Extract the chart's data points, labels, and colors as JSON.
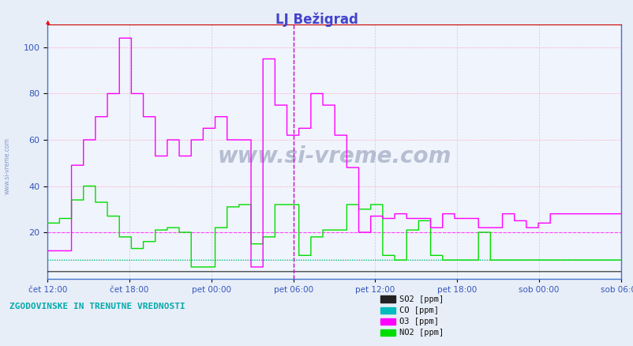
{
  "title": "LJ Bežigrad",
  "title_color": "#4444cc",
  "fig_bg": "#e8eef8",
  "plot_bg": "#f0f4fc",
  "o3_color": "#ff00ff",
  "no2_color": "#00dd00",
  "so2_color": "#222222",
  "co_color": "#00bbbb",
  "hline_pink_y": 20,
  "hline_pink_color": "#ff44ff",
  "hline_green_y": 8,
  "hline_green_color": "#00cc00",
  "vline_color": "#cc00cc",
  "vline_x": 3,
  "ylim": [
    0,
    110
  ],
  "xlim": [
    0,
    7
  ],
  "yticks": [
    20,
    40,
    60,
    80,
    100
  ],
  "xtick_labels": [
    "čet 12:00",
    "čet 18:00",
    "pet 00:00",
    "pet 06:00",
    "pet 12:00",
    "pet 18:00",
    "sob 00:00",
    "sob 06:00"
  ],
  "bottom_text": "ZGODOVINSKE IN TRENUTNE VREDNOSTI",
  "bottom_text_color": "#00aaaa",
  "watermark": "www.si-vreme.com",
  "legend_colors": [
    "#222222",
    "#00bbbb",
    "#ff00ff",
    "#00dd00"
  ],
  "legend_labels": [
    "SO2 [ppm]",
    "CO [ppm]",
    "O3 [ppm]",
    "NO2 [ppm]"
  ],
  "n": 576,
  "o3_data": [
    12,
    12,
    12,
    12,
    12,
    12,
    12,
    12,
    12,
    12,
    12,
    12,
    12,
    12,
    12,
    12,
    12,
    12,
    12,
    12,
    12,
    12,
    12,
    12,
    49,
    49,
    49,
    49,
    49,
    49,
    49,
    49,
    49,
    49,
    49,
    49,
    60,
    60,
    60,
    60,
    60,
    60,
    60,
    60,
    60,
    60,
    60,
    60,
    70,
    70,
    70,
    70,
    70,
    70,
    70,
    70,
    70,
    70,
    70,
    70,
    80,
    80,
    80,
    80,
    80,
    80,
    80,
    80,
    80,
    80,
    80,
    80,
    104,
    104,
    104,
    104,
    104,
    104,
    104,
    104,
    104,
    104,
    104,
    104,
    80,
    80,
    80,
    80,
    80,
    80,
    80,
    80,
    80,
    80,
    80,
    80,
    70,
    70,
    70,
    70,
    70,
    70,
    70,
    70,
    70,
    70,
    70,
    70,
    53,
    53,
    53,
    53,
    53,
    53,
    53,
    53,
    53,
    53,
    53,
    53,
    60,
    60,
    60,
    60,
    60,
    60,
    60,
    60,
    60,
    60,
    60,
    60,
    53,
    53,
    53,
    53,
    53,
    53,
    53,
    53,
    53,
    53,
    53,
    53,
    60,
    60,
    60,
    60,
    60,
    60,
    60,
    60,
    60,
    60,
    60,
    60,
    65,
    65,
    65,
    65,
    65,
    65,
    65,
    65,
    65,
    65,
    65,
    65,
    70,
    70,
    70,
    70,
    70,
    70,
    70,
    70,
    70,
    70,
    70,
    70,
    60,
    60,
    60,
    60,
    60,
    60,
    60,
    60,
    60,
    60,
    60,
    60,
    60,
    60,
    60,
    60,
    60,
    60,
    60,
    60,
    60,
    60,
    60,
    60,
    5,
    5,
    5,
    5,
    5,
    5,
    5,
    5,
    5,
    5,
    5,
    5,
    95,
    95,
    95,
    95,
    95,
    95,
    95,
    95,
    95,
    95,
    95,
    95,
    75,
    75,
    75,
    75,
    75,
    75,
    75,
    75,
    75,
    75,
    75,
    75,
    62,
    62,
    62,
    62,
    62,
    62,
    62,
    62,
    62,
    62,
    62,
    62,
    65,
    65,
    65,
    65,
    65,
    65,
    65,
    65,
    65,
    65,
    65,
    65,
    80,
    80,
    80,
    80,
    80,
    80,
    80,
    80,
    80,
    80,
    80,
    80,
    75,
    75,
    75,
    75,
    75,
    75,
    75,
    75,
    75,
    75,
    75,
    75,
    62,
    62,
    62,
    62,
    62,
    62,
    62,
    62,
    62,
    62,
    62,
    62,
    48,
    48,
    48,
    48,
    48,
    48,
    48,
    48,
    48,
    48,
    48,
    48,
    20,
    20,
    20,
    20,
    20,
    20,
    20,
    20,
    20,
    20,
    20,
    20,
    27,
    27,
    27,
    27,
    27,
    27,
    27,
    27,
    27,
    27,
    27,
    27,
    26,
    26,
    26,
    26,
    26,
    26,
    26,
    26,
    26,
    26,
    26,
    26,
    28,
    28,
    28,
    28,
    28,
    28,
    28,
    28,
    28,
    28,
    28,
    28,
    26,
    26,
    26,
    26,
    26,
    26,
    26,
    26,
    26,
    26,
    26,
    26,
    26,
    26,
    26,
    26,
    26,
    26,
    26,
    26,
    26,
    26,
    26,
    26,
    22,
    22,
    22,
    22,
    22,
    22,
    22,
    22,
    22,
    22,
    22,
    22,
    28,
    28,
    28,
    28,
    28,
    28,
    28,
    28,
    28,
    28,
    28,
    28,
    26,
    26,
    26,
    26,
    26,
    26,
    26,
    26,
    26,
    26,
    26,
    26,
    26,
    26,
    26,
    26,
    26,
    26,
    26,
    26,
    26,
    26,
    26,
    26,
    22,
    22,
    22,
    22,
    22,
    22,
    22,
    22,
    22,
    22,
    22,
    22,
    22,
    22,
    22,
    22,
    22,
    22,
    22,
    22,
    22,
    22,
    22,
    22,
    28,
    28,
    28,
    28,
    28,
    28,
    28,
    28,
    28,
    28,
    28,
    28,
    25,
    25,
    25,
    25,
    25,
    25,
    25,
    25,
    25,
    25,
    25,
    25,
    22,
    22,
    22,
    22,
    22,
    22,
    22,
    22,
    22,
    22,
    22,
    22,
    24,
    24,
    24,
    24,
    24,
    24,
    24,
    24,
    24,
    24,
    24,
    24,
    28,
    28,
    28,
    28,
    28,
    28,
    28,
    28,
    28,
    28,
    28,
    28,
    28,
    28,
    28,
    28,
    28,
    28,
    28,
    28,
    28,
    28,
    28,
    28,
    28,
    28,
    28,
    28,
    28,
    28,
    28,
    28,
    28,
    28,
    28,
    28,
    28,
    28,
    28,
    28,
    28,
    28,
    28,
    28,
    28,
    28,
    28,
    28,
    28,
    28,
    28,
    28,
    28,
    28,
    28,
    28,
    28,
    28,
    28,
    28,
    28,
    28,
    28,
    28,
    28,
    28,
    28,
    28,
    28,
    28,
    28,
    28,
    28,
    28,
    28,
    28,
    28,
    28,
    28,
    28,
    28,
    28,
    28,
    28,
    28,
    28,
    28,
    28,
    28,
    28,
    28,
    28,
    28,
    28,
    28,
    28
  ],
  "no2_data": [
    24,
    24,
    24,
    24,
    24,
    24,
    24,
    24,
    24,
    24,
    24,
    24,
    26,
    26,
    26,
    26,
    26,
    26,
    26,
    26,
    26,
    26,
    26,
    26,
    34,
    34,
    34,
    34,
    34,
    34,
    34,
    34,
    34,
    34,
    34,
    34,
    40,
    40,
    40,
    40,
    40,
    40,
    40,
    40,
    40,
    40,
    40,
    40,
    33,
    33,
    33,
    33,
    33,
    33,
    33,
    33,
    33,
    33,
    33,
    33,
    27,
    27,
    27,
    27,
    27,
    27,
    27,
    27,
    27,
    27,
    27,
    27,
    18,
    18,
    18,
    18,
    18,
    18,
    18,
    18,
    18,
    18,
    18,
    18,
    13,
    13,
    13,
    13,
    13,
    13,
    13,
    13,
    13,
    13,
    13,
    13,
    16,
    16,
    16,
    16,
    16,
    16,
    16,
    16,
    16,
    16,
    16,
    16,
    21,
    21,
    21,
    21,
    21,
    21,
    21,
    21,
    21,
    21,
    21,
    21,
    22,
    22,
    22,
    22,
    22,
    22,
    22,
    22,
    22,
    22,
    22,
    22,
    20,
    20,
    20,
    20,
    20,
    20,
    20,
    20,
    20,
    20,
    20,
    20,
    5,
    5,
    5,
    5,
    5,
    5,
    5,
    5,
    5,
    5,
    5,
    5,
    5,
    5,
    5,
    5,
    5,
    5,
    5,
    5,
    5,
    5,
    5,
    5,
    22,
    22,
    22,
    22,
    22,
    22,
    22,
    22,
    22,
    22,
    22,
    22,
    31,
    31,
    31,
    31,
    31,
    31,
    31,
    31,
    31,
    31,
    31,
    31,
    32,
    32,
    32,
    32,
    32,
    32,
    32,
    32,
    32,
    32,
    32,
    32,
    15,
    15,
    15,
    15,
    15,
    15,
    15,
    15,
    15,
    15,
    15,
    15,
    18,
    18,
    18,
    18,
    18,
    18,
    18,
    18,
    18,
    18,
    18,
    18,
    32,
    32,
    32,
    32,
    32,
    32,
    32,
    32,
    32,
    32,
    32,
    32,
    32,
    32,
    32,
    32,
    32,
    32,
    32,
    32,
    32,
    32,
    32,
    32,
    10,
    10,
    10,
    10,
    10,
    10,
    10,
    10,
    10,
    10,
    10,
    10,
    18,
    18,
    18,
    18,
    18,
    18,
    18,
    18,
    18,
    18,
    18,
    18,
    21,
    21,
    21,
    21,
    21,
    21,
    21,
    21,
    21,
    21,
    21,
    21,
    21,
    21,
    21,
    21,
    21,
    21,
    21,
    21,
    21,
    21,
    21,
    21,
    32,
    32,
    32,
    32,
    32,
    32,
    32,
    32,
    32,
    32,
    32,
    32,
    30,
    30,
    30,
    30,
    30,
    30,
    30,
    30,
    30,
    30,
    30,
    30,
    32,
    32,
    32,
    32,
    32,
    32,
    32,
    32,
    32,
    32,
    32,
    32,
    10,
    10,
    10,
    10,
    10,
    10,
    10,
    10,
    10,
    10,
    10,
    10,
    8,
    8,
    8,
    8,
    8,
    8,
    8,
    8,
    8,
    8,
    8,
    8,
    21,
    21,
    21,
    21,
    21,
    21,
    21,
    21,
    21,
    21,
    21,
    21,
    25,
    25,
    25,
    25,
    25,
    25,
    25,
    25,
    25,
    25,
    25,
    25,
    10,
    10,
    10,
    10,
    10,
    10,
    10,
    10,
    10,
    10,
    10,
    10,
    8,
    8,
    8,
    8,
    8,
    8,
    8,
    8,
    8,
    8,
    8,
    8,
    8,
    8,
    8,
    8,
    8,
    8,
    8,
    8,
    8,
    8,
    8,
    8,
    8,
    8,
    8,
    8,
    8,
    8,
    8,
    8,
    8,
    8,
    8,
    8,
    20,
    20,
    20,
    20,
    20,
    20,
    20,
    20,
    20,
    20,
    20,
    20,
    8,
    8,
    8,
    8,
    8,
    8,
    8,
    8,
    8,
    8,
    8,
    8,
    8,
    8,
    8,
    8,
    8,
    8,
    8,
    8,
    8,
    8,
    8,
    8,
    8,
    8,
    8,
    8,
    8,
    8,
    8,
    8,
    8,
    8,
    8,
    8,
    8,
    8,
    8,
    8,
    8,
    8,
    8,
    8,
    8,
    8,
    8,
    8,
    8,
    8,
    8,
    8,
    8,
    8,
    8,
    8,
    8,
    8,
    8,
    8,
    8,
    8,
    8,
    8,
    8,
    8,
    8,
    8,
    8,
    8,
    8,
    8,
    8,
    8,
    8,
    8,
    8,
    8,
    8,
    8,
    8,
    8,
    8,
    8,
    8,
    8,
    8,
    8,
    8,
    8,
    8,
    8,
    8,
    8,
    8,
    8,
    8,
    8,
    8,
    8,
    8,
    8,
    8,
    8,
    8,
    8,
    8,
    8,
    8,
    8,
    8,
    8,
    8,
    8,
    8,
    8,
    8,
    8,
    8,
    8,
    8,
    8,
    8,
    8,
    8,
    8,
    8,
    8,
    8,
    8,
    8,
    8,
    8,
    8,
    8,
    8,
    8,
    8,
    8,
    8,
    8,
    8,
    8,
    8
  ]
}
